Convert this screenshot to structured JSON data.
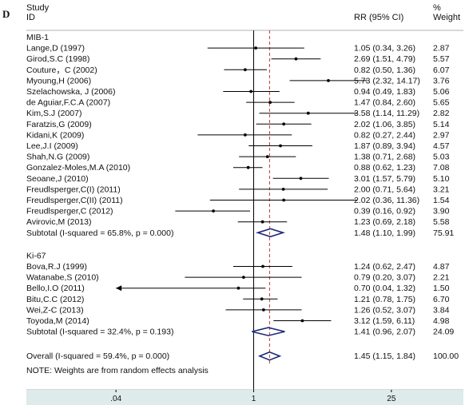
{
  "panel_label": "D",
  "chart_data": {
    "type": "forest",
    "header": {
      "study": "Study",
      "id": "ID",
      "effect": "RR (95% CI)",
      "pct": "%",
      "weight": "Weight"
    },
    "x_scale": "log",
    "xlim": [
      0.025,
      40
    ],
    "reference_line": 1,
    "overall_line": 1.45,
    "ticks": [
      {
        "value": 0.04,
        "label": ".04"
      },
      {
        "value": 1,
        "label": "1"
      },
      {
        "value": 25,
        "label": "25"
      }
    ],
    "groups": [
      {
        "name": "MIB-1",
        "studies": [
          {
            "label": "Lange,D (1997)",
            "rr": 1.05,
            "lo": 0.34,
            "hi": 3.26,
            "ci_text": "1.05 (0.34, 3.26)",
            "weight": "2.87"
          },
          {
            "label": "Girod,S.C (1998)",
            "rr": 2.69,
            "lo": 1.51,
            "hi": 4.79,
            "ci_text": "2.69 (1.51, 4.79)",
            "weight": "5.57"
          },
          {
            "label": "Couture，C (2002)",
            "rr": 0.82,
            "lo": 0.5,
            "hi": 1.36,
            "ci_text": "0.82 (0.50, 1.36)",
            "weight": "6.07"
          },
          {
            "label": "Myoung,H (2006)",
            "rr": 5.73,
            "lo": 2.32,
            "hi": 14.17,
            "ci_text": "5.73 (2.32, 14.17)",
            "weight": "3.76"
          },
          {
            "label": "Szelachowska, J (2006)",
            "rr": 0.94,
            "lo": 0.49,
            "hi": 1.83,
            "ci_text": "0.94 (0.49, 1.83)",
            "weight": "5.06"
          },
          {
            "label": "de Aguiar,F.C.A (2007)",
            "rr": 1.47,
            "lo": 0.84,
            "hi": 2.6,
            "ci_text": "1.47 (0.84, 2.60)",
            "weight": "5.65"
          },
          {
            "label": "Kim,S.J (2007)",
            "rr": 3.58,
            "lo": 1.14,
            "hi": 11.29,
            "ci_text": "3.58 (1.14, 11.29)",
            "weight": "2.82"
          },
          {
            "label": "Faratzis,G (2009)",
            "rr": 2.02,
            "lo": 1.06,
            "hi": 3.85,
            "ci_text": "2.02 (1.06, 3.85)",
            "weight": "5.14"
          },
          {
            "label": "Kidani,K (2009)",
            "rr": 0.82,
            "lo": 0.27,
            "hi": 2.44,
            "ci_text": "0.82 (0.27, 2.44)",
            "weight": "2.97"
          },
          {
            "label": "Lee,J.I (2009)",
            "rr": 1.87,
            "lo": 0.89,
            "hi": 3.94,
            "ci_text": "1.87 (0.89, 3.94)",
            "weight": "4.57"
          },
          {
            "label": "Shah,N.G (2009)",
            "rr": 1.38,
            "lo": 0.71,
            "hi": 2.68,
            "ci_text": "1.38 (0.71, 2.68)",
            "weight": "5.03"
          },
          {
            "label": "Gonzalez-Moles,M.A (2010)",
            "rr": 0.88,
            "lo": 0.62,
            "hi": 1.23,
            "ci_text": "0.88 (0.62, 1.23)",
            "weight": "7.08"
          },
          {
            "label": "Seoane,J (2010)",
            "rr": 3.01,
            "lo": 1.57,
            "hi": 5.79,
            "ci_text": "3.01 (1.57, 5.79)",
            "weight": "5.10"
          },
          {
            "label": "Freudlsperger,C(I) (2011)",
            "rr": 2.0,
            "lo": 0.71,
            "hi": 5.64,
            "ci_text": "2.00 (0.71, 5.64)",
            "weight": "3.21"
          },
          {
            "label": "Freudlsperger,C(II) (2011)",
            "rr": 2.02,
            "lo": 0.36,
            "hi": 11.36,
            "ci_text": "2.02 (0.36, 11.36)",
            "weight": "1.54"
          },
          {
            "label": "Freudlsperger,C (2012)",
            "rr": 0.39,
            "lo": 0.16,
            "hi": 0.92,
            "ci_text": "0.39 (0.16, 0.92)",
            "weight": "3.90"
          },
          {
            "label": "Avirovic,M (2013)",
            "rr": 1.23,
            "lo": 0.69,
            "hi": 2.18,
            "ci_text": "1.23 (0.69, 2.18)",
            "weight": "5.58"
          }
        ],
        "subtotal": {
          "label": "Subtotal  (I-squared = 65.8%, p = 0.000)",
          "rr": 1.48,
          "lo": 1.1,
          "hi": 1.99,
          "ci_text": "1.48 (1.10, 1.99)",
          "weight": "75.91"
        }
      },
      {
        "name": "Ki-67",
        "studies": [
          {
            "label": "Bova,R.J (1999)",
            "rr": 1.24,
            "lo": 0.62,
            "hi": 2.47,
            "ci_text": "1.24 (0.62, 2.47)",
            "weight": "4.87"
          },
          {
            "label": "Watanabe,S (2010)",
            "rr": 0.79,
            "lo": 0.2,
            "hi": 3.07,
            "ci_text": "0.79 (0.20, 3.07)",
            "weight": "2.21"
          },
          {
            "label": "Bello,I.O (2011)",
            "rr": 0.7,
            "lo": 0.04,
            "hi": 1.32,
            "ci_text": "0.70 (0.04, 1.32)",
            "weight": "1.50",
            "arrow_left": true
          },
          {
            "label": "Bitu,C.C (2012)",
            "rr": 1.21,
            "lo": 0.78,
            "hi": 1.75,
            "ci_text": "1.21 (0.78, 1.75)",
            "weight": "6.70"
          },
          {
            "label": "Wei,Z-C (2013)",
            "rr": 1.26,
            "lo": 0.52,
            "hi": 3.07,
            "ci_text": "1.26 (0.52, 3.07)",
            "weight": "3.84"
          },
          {
            "label": "Toyoda,M (2014)",
            "rr": 3.12,
            "lo": 1.59,
            "hi": 6.11,
            "ci_text": "3.12 (1.59, 6.11)",
            "weight": "4.98"
          }
        ],
        "subtotal": {
          "label": "Subtotal  (I-squared = 32.4%, p = 0.193)",
          "rr": 1.41,
          "lo": 0.96,
          "hi": 2.07,
          "ci_text": "1.41 (0.96, 2.07)",
          "weight": "24.09"
        }
      }
    ],
    "overall": {
      "label": "Overall  (I-squared = 59.4%, p = 0.000)",
      "rr": 1.45,
      "lo": 1.15,
      "hi": 1.84,
      "ci_text": "1.45 (1.15, 1.84)",
      "weight": "100.00"
    },
    "note": "NOTE: Weights are from random effects analysis",
    "colors": {
      "background": "#ffffff",
      "axis_band": "#ddebea",
      "ci_line": "#000000",
      "diamond": "#1c2a7a",
      "overall_line": "#c0392b",
      "text": "#111111"
    }
  }
}
